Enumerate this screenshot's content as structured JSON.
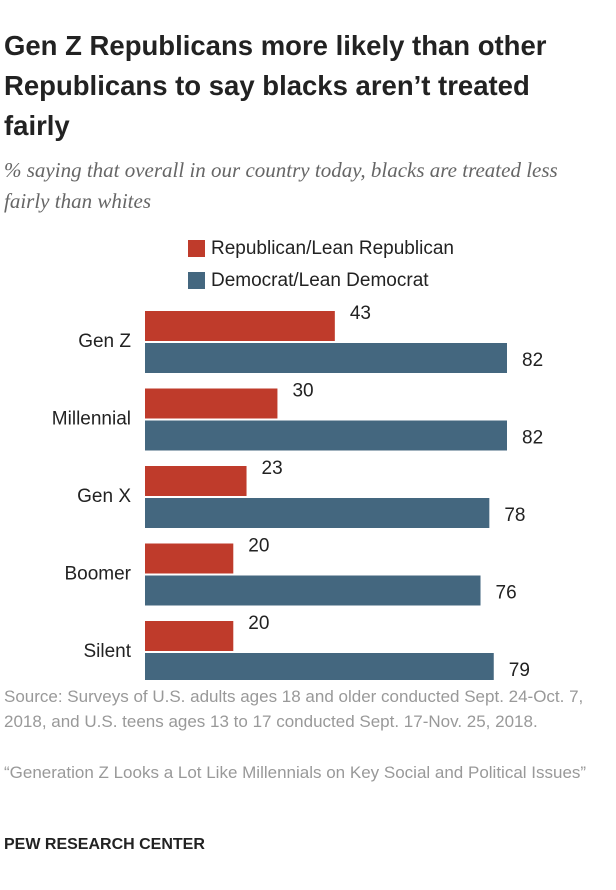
{
  "chart_data": {
    "type": "bar",
    "orientation": "horizontal",
    "title": "Gen Z Republicans more likely than other Republicans to say blacks aren’t treated fairly",
    "subtitle": "% saying that overall in our country today, blacks are treated less fairly than whites",
    "categories": [
      "Gen Z",
      "Millennial",
      "Gen X",
      "Boomer",
      "Silent"
    ],
    "series": [
      {
        "name": "Republican/Lean Republican",
        "color": "#bf3b2b",
        "values": [
          43,
          30,
          23,
          20,
          20
        ]
      },
      {
        "name": "Democrat/Lean Democrat",
        "color": "#44677f",
        "values": [
          82,
          82,
          78,
          76,
          79
        ]
      }
    ],
    "source": "Source: Surveys of U.S. adults ages 18 and older conducted Sept. 24-Oct. 7, 2018, and U.S. teens ages 13 to 17 conducted Sept. 17-Nov. 25, 2018.",
    "note": "“Generation Z Looks a Lot Like Millennials on Key Social and Political Issues”",
    "credit": "PEW RESEARCH CENTER"
  }
}
